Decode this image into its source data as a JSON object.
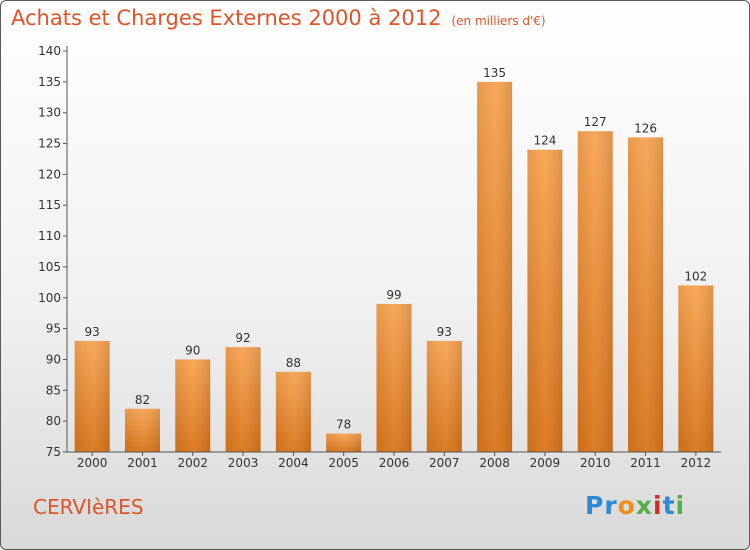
{
  "title": "Achats et Charges Externes 2000 à 2012",
  "subtitle": "(en milliers d'€)",
  "commune": "CERVIèRES",
  "logo": {
    "text": "Proxiti",
    "letters": [
      "P",
      "r",
      "o",
      "x",
      "i",
      "t",
      "i"
    ],
    "colors": [
      "#2a8ad6",
      "#2a8ad6",
      "#f28c1c",
      "#52b146",
      "#d1282c",
      "#2a8ad6",
      "#52b146"
    ]
  },
  "colors": {
    "bar_top": "#f6a352",
    "bar_bottom": "#d8741a",
    "title": "#e0542a"
  },
  "chart_data": {
    "type": "bar",
    "categories": [
      "2000",
      "2001",
      "2002",
      "2003",
      "2004",
      "2005",
      "2006",
      "2007",
      "2008",
      "2009",
      "2010",
      "2011",
      "2012"
    ],
    "values": [
      93,
      82,
      90,
      92,
      88,
      78,
      99,
      93,
      135,
      124,
      127,
      126,
      102
    ],
    "ylim": [
      75,
      140
    ],
    "yticks": [
      75,
      80,
      85,
      90,
      95,
      100,
      105,
      110,
      115,
      120,
      125,
      130,
      135,
      140
    ],
    "grid": false
  }
}
